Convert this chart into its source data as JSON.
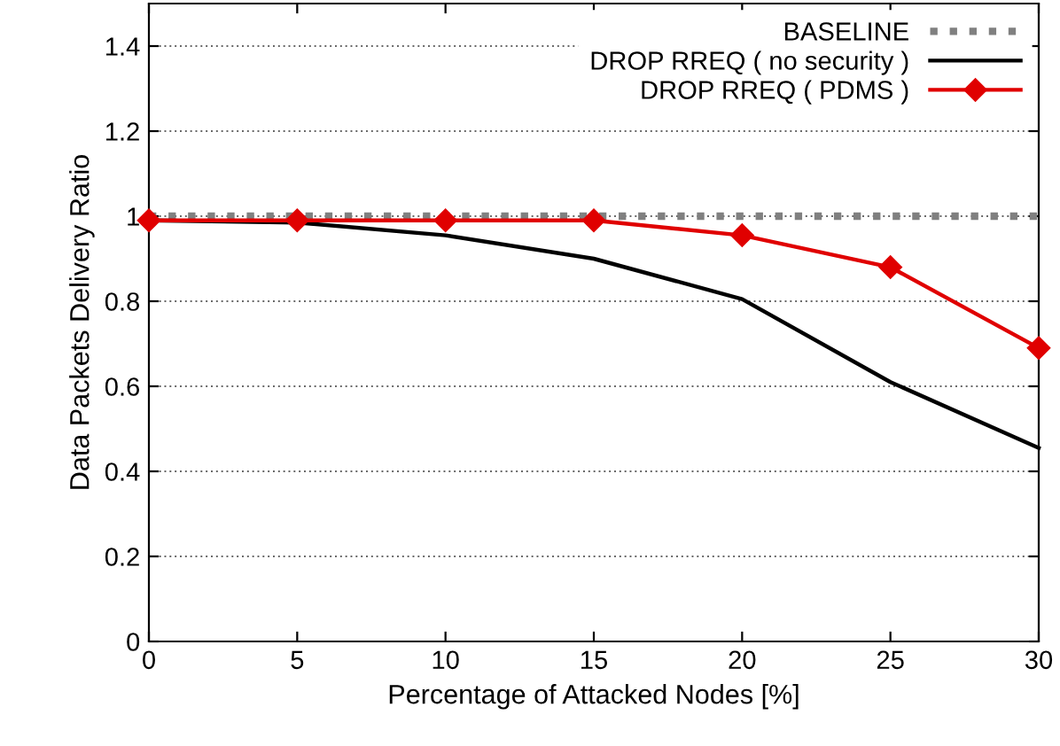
{
  "chart_data": {
    "type": "line",
    "xlabel": "Percentage of Attacked Nodes [%]",
    "ylabel": "Data Packets Delivery Ratio",
    "x": [
      0,
      5,
      10,
      15,
      20,
      25,
      30
    ],
    "series": [
      {
        "name": "BASELINE",
        "color": "#808080",
        "values": [
          1,
          1,
          1,
          1,
          1,
          1,
          1
        ],
        "line_style": "dotted",
        "marker": "none"
      },
      {
        "name": "DROP RREQ ( no security )",
        "color": "#000000",
        "values": [
          0.99,
          0.985,
          0.955,
          0.9,
          0.805,
          0.61,
          0.455
        ],
        "line_style": "solid",
        "marker": "none"
      },
      {
        "name": "DROP RREQ ( PDMS )",
        "color": "#e00000",
        "values": [
          0.99,
          0.99,
          0.99,
          0.99,
          0.955,
          0.88,
          0.69
        ],
        "line_style": "solid",
        "marker": "diamond"
      }
    ],
    "xlim": [
      0,
      30
    ],
    "xticks": [
      0,
      5,
      10,
      15,
      20,
      25,
      30
    ],
    "ylim": [
      0,
      1.5
    ],
    "yticks": [
      0,
      0.2,
      0.4,
      0.6,
      0.8,
      1,
      1.2,
      1.4
    ],
    "grid": "y",
    "legend": "top right"
  }
}
